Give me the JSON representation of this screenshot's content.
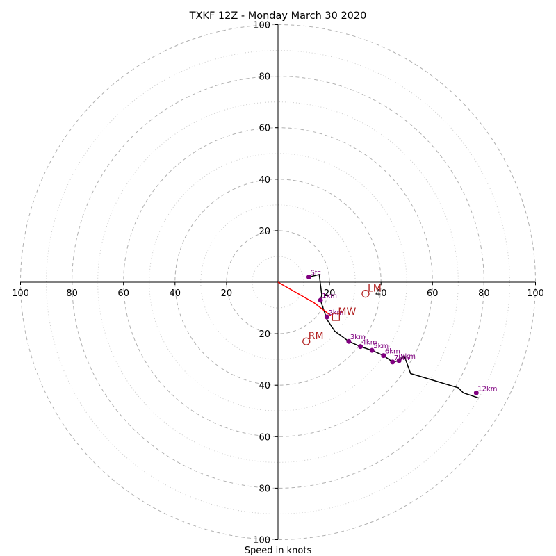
{
  "chart_data": {
    "type": "scatter",
    "subtype": "hodograph",
    "title": "TXKF 12Z - Monday March 30 2020",
    "xlabel": "Speed in knots",
    "ylabel": "",
    "xlim": [
      -100,
      100
    ],
    "ylim": [
      -100,
      100
    ],
    "ring_major": [
      20,
      40,
      60,
      80,
      100
    ],
    "ring_minor": [
      10,
      30,
      50,
      70,
      90
    ],
    "tick_labels_x": [
      "100",
      "80",
      "60",
      "40",
      "20",
      "20",
      "40",
      "60",
      "80",
      "100"
    ],
    "tick_labels_y": [
      "100",
      "80",
      "60",
      "40",
      "20",
      "20",
      "40",
      "60",
      "80",
      "100"
    ],
    "tick_values": [
      -100,
      -80,
      -60,
      -40,
      -20,
      20,
      40,
      60,
      80,
      100
    ],
    "hodograph_trace": {
      "u": [
        12,
        16,
        17,
        16.5,
        19,
        22,
        27.5,
        32,
        36.5,
        41,
        44.5,
        47,
        49,
        51.5,
        70,
        72,
        78
      ],
      "v": [
        2,
        3,
        -5,
        -7,
        -14.5,
        -19,
        -23,
        -25,
        -26.5,
        -28.5,
        -31,
        -30.5,
        -28.5,
        -35.5,
        -41,
        -43,
        -45
      ]
    },
    "height_points": [
      {
        "label": "Sfc",
        "u": 12,
        "v": 2
      },
      {
        "label": "1km",
        "u": 16.5,
        "v": -7
      },
      {
        "label": "2km",
        "u": 19,
        "v": -13.5
      },
      {
        "label": "3km",
        "u": 27.5,
        "v": -23
      },
      {
        "label": "4km",
        "u": 32,
        "v": -25
      },
      {
        "label": "5km",
        "u": 36.5,
        "v": -26.5
      },
      {
        "label": "6km",
        "u": 41,
        "v": -28.5
      },
      {
        "label": "7km",
        "u": 44.5,
        "v": -31
      },
      {
        "label": "8km",
        "u": 47,
        "v": -30.5
      },
      {
        "label": "12km",
        "u": 77,
        "v": -43
      }
    ],
    "storm_motion": {
      "bunkers_vector": {
        "u": [
          0,
          14,
          20.5
        ],
        "v": [
          0,
          -8,
          -13
        ]
      },
      "markers": [
        {
          "label": "LM",
          "u": 34,
          "v": -4.5,
          "shape": "circle"
        },
        {
          "label": "MW",
          "u": 22.5,
          "v": -13.5,
          "shape": "square"
        },
        {
          "label": "RM",
          "u": 11,
          "v": -23,
          "shape": "circle"
        }
      ]
    },
    "colors": {
      "trace": "#000000",
      "points": "#800080",
      "storm": "#b22222",
      "vector": "#ff0000",
      "grid": "#b0b0b0"
    },
    "grid": true
  }
}
